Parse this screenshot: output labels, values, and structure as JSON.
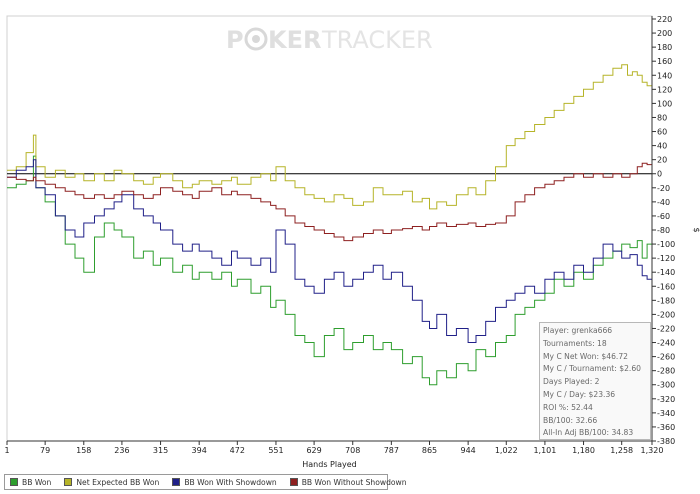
{
  "chart_data": {
    "type": "line",
    "title": "",
    "xlabel": "Hands Played",
    "ylabel": "$",
    "xlim": [
      1,
      1320
    ],
    "ylim": [
      -380,
      220
    ],
    "x_ticks": [
      "1",
      "79",
      "158",
      "236",
      "315",
      "394",
      "472",
      "551",
      "629",
      "708",
      "787",
      "865",
      "944",
      "1,022",
      "1,101",
      "1,180",
      "1,258",
      "1,320"
    ],
    "y_ticks": [
      220,
      200,
      180,
      160,
      140,
      120,
      100,
      80,
      60,
      40,
      20,
      0,
      -20,
      -40,
      -60,
      -80,
      -100,
      -120,
      -140,
      -160,
      -180,
      -200,
      -220,
      -240,
      -260,
      -280,
      -300,
      -320,
      -340,
      -360,
      -380
    ],
    "legend_position": "bottom",
    "grid": false,
    "series": [
      {
        "name": "BB Won",
        "color": "#2e9e2e",
        "x": [
          1,
          20,
          40,
          55,
          60,
          79,
          100,
          120,
          140,
          158,
          180,
          200,
          220,
          236,
          260,
          280,
          300,
          315,
          340,
          360,
          380,
          394,
          420,
          440,
          460,
          472,
          500,
          520,
          540,
          551,
          570,
          590,
          610,
          629,
          650,
          670,
          690,
          708,
          730,
          750,
          770,
          787,
          810,
          830,
          850,
          865,
          880,
          900,
          920,
          944,
          960,
          980,
          1000,
          1022,
          1040,
          1060,
          1080,
          1101,
          1120,
          1140,
          1160,
          1180,
          1200,
          1220,
          1240,
          1258,
          1275,
          1290,
          1300,
          1310,
          1320
        ],
        "y": [
          -20,
          -15,
          -10,
          25,
          -20,
          -40,
          -60,
          -100,
          -120,
          -140,
          -90,
          -70,
          -80,
          -90,
          -120,
          -110,
          -130,
          -120,
          -140,
          -130,
          -150,
          -140,
          -150,
          -140,
          -160,
          -150,
          -170,
          -160,
          -190,
          -180,
          -200,
          -230,
          -240,
          -260,
          -230,
          -220,
          -250,
          -240,
          -230,
          -250,
          -240,
          -250,
          -270,
          -260,
          -290,
          -300,
          -280,
          -290,
          -270,
          -280,
          -250,
          -260,
          -240,
          -230,
          -200,
          -190,
          -180,
          -170,
          -150,
          -160,
          -140,
          -150,
          -130,
          -120,
          -110,
          -100,
          -105,
          -95,
          -120,
          -100,
          -130
        ]
      },
      {
        "name": "Net Expected BB Won",
        "color": "#b6b428",
        "x": [
          1,
          20,
          40,
          55,
          60,
          79,
          100,
          120,
          140,
          158,
          180,
          200,
          220,
          236,
          260,
          280,
          300,
          315,
          340,
          360,
          380,
          394,
          420,
          440,
          460,
          472,
          500,
          520,
          540,
          551,
          570,
          590,
          610,
          629,
          650,
          670,
          690,
          708,
          730,
          750,
          770,
          787,
          810,
          830,
          850,
          865,
          880,
          900,
          920,
          944,
          960,
          980,
          1000,
          1022,
          1040,
          1060,
          1080,
          1101,
          1120,
          1140,
          1160,
          1180,
          1200,
          1220,
          1240,
          1258,
          1270,
          1280,
          1290,
          1300,
          1310,
          1320
        ],
        "y": [
          5,
          10,
          30,
          55,
          10,
          -5,
          5,
          -5,
          0,
          -10,
          0,
          -10,
          5,
          0,
          -10,
          -15,
          -5,
          0,
          -10,
          -20,
          -15,
          -10,
          -15,
          -10,
          -5,
          -15,
          -5,
          0,
          -10,
          10,
          -10,
          -20,
          -30,
          -35,
          -40,
          -30,
          -35,
          -45,
          -40,
          -20,
          -30,
          -30,
          -25,
          -40,
          -35,
          -50,
          -40,
          -45,
          -30,
          -20,
          -30,
          -10,
          10,
          40,
          50,
          60,
          70,
          80,
          90,
          100,
          110,
          120,
          130,
          140,
          150,
          155,
          140,
          145,
          140,
          130,
          125,
          135
        ]
      },
      {
        "name": "BB Won With Showdown",
        "color": "#202088",
        "x": [
          1,
          20,
          40,
          55,
          60,
          79,
          100,
          120,
          140,
          158,
          180,
          200,
          220,
          236,
          260,
          280,
          300,
          315,
          340,
          360,
          380,
          394,
          420,
          440,
          460,
          472,
          500,
          520,
          540,
          551,
          570,
          590,
          610,
          629,
          650,
          670,
          690,
          708,
          730,
          750,
          770,
          787,
          810,
          830,
          850,
          865,
          880,
          900,
          920,
          944,
          960,
          980,
          1000,
          1022,
          1040,
          1060,
          1080,
          1101,
          1120,
          1140,
          1160,
          1180,
          1200,
          1220,
          1240,
          1258,
          1275,
          1290,
          1300,
          1310,
          1320
        ],
        "y": [
          -5,
          5,
          10,
          20,
          -20,
          -30,
          -60,
          -80,
          -90,
          -70,
          -60,
          -50,
          -40,
          -30,
          -50,
          -60,
          -70,
          -80,
          -100,
          -110,
          -100,
          -110,
          -120,
          -130,
          -110,
          -120,
          -130,
          -120,
          -140,
          -80,
          -100,
          -150,
          -160,
          -170,
          -150,
          -140,
          -160,
          -150,
          -140,
          -130,
          -150,
          -140,
          -160,
          -180,
          -210,
          -220,
          -200,
          -230,
          -220,
          -240,
          -230,
          -210,
          -190,
          -180,
          -170,
          -160,
          -170,
          -150,
          -140,
          -150,
          -130,
          -140,
          -120,
          -100,
          -110,
          -120,
          -115,
          -130,
          -145,
          -150,
          -140
        ]
      },
      {
        "name": "BB Won Without Showdown",
        "color": "#8e2020",
        "x": [
          1,
          20,
          40,
          55,
          60,
          79,
          100,
          120,
          140,
          158,
          180,
          200,
          220,
          236,
          260,
          280,
          300,
          315,
          340,
          360,
          380,
          394,
          420,
          440,
          460,
          472,
          500,
          520,
          540,
          551,
          570,
          590,
          610,
          629,
          650,
          670,
          690,
          708,
          730,
          750,
          770,
          787,
          810,
          830,
          850,
          865,
          880,
          900,
          920,
          944,
          960,
          980,
          1000,
          1022,
          1040,
          1060,
          1080,
          1101,
          1120,
          1140,
          1160,
          1180,
          1200,
          1220,
          1240,
          1258,
          1275,
          1290,
          1300,
          1310,
          1320
        ],
        "y": [
          -5,
          -8,
          -10,
          -5,
          -10,
          -15,
          -20,
          -25,
          -30,
          -35,
          -30,
          -35,
          -30,
          -25,
          -30,
          -35,
          -30,
          -20,
          -25,
          -30,
          -35,
          -25,
          -20,
          -30,
          -25,
          -30,
          -35,
          -40,
          -45,
          -50,
          -60,
          -70,
          -75,
          -80,
          -85,
          -90,
          -95,
          -90,
          -85,
          -80,
          -85,
          -80,
          -78,
          -75,
          -80,
          -75,
          -70,
          -75,
          -72,
          -70,
          -75,
          -72,
          -70,
          -60,
          -40,
          -30,
          -20,
          -15,
          -10,
          -5,
          0,
          -5,
          0,
          -5,
          0,
          -5,
          0,
          10,
          15,
          13,
          8
        ]
      }
    ]
  },
  "watermark": {
    "part1": "P",
    "part2": "KER",
    "part3": "TRACKER",
    "chip_color": "#c8c8c8"
  },
  "stats": [
    "Player: grenka666",
    "Tournaments: 18",
    "My C Net Won: $46.72",
    "My C / Tournament: $2.60",
    "Days Played: 2",
    "My C / Day: $23.36",
    "ROI %: 52.44",
    "BB/100: 32.66",
    "All-In Adj BB/100: 34.83"
  ],
  "legend": {
    "position": "bottom",
    "items": [
      {
        "label": "BB Won",
        "color": "#2e9e2e"
      },
      {
        "label": "Net Expected BB Won",
        "color": "#b6b428"
      },
      {
        "label": "BB Won With Showdown",
        "color": "#202088"
      },
      {
        "label": "BB Won Without Showdown",
        "color": "#8e2020"
      }
    ]
  }
}
